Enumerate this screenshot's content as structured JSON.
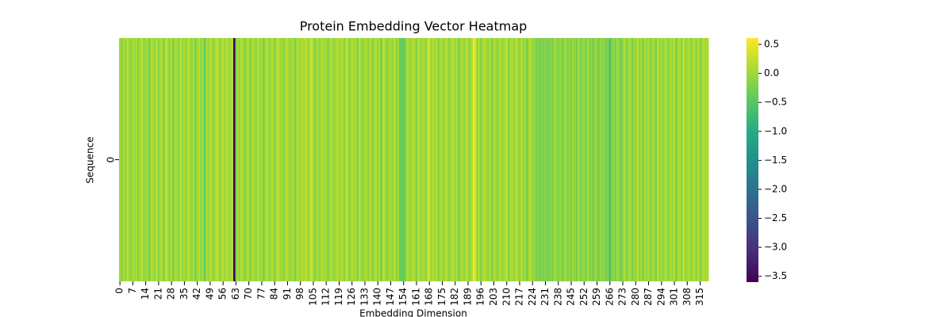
{
  "chart_data": {
    "type": "heatmap",
    "title": "Protein Embedding Vector Heatmap",
    "xlabel": "Embedding Dimension",
    "ylabel": "Sequence",
    "rows": [
      "0"
    ],
    "xlim": [
      0,
      320
    ],
    "xticks": [
      0,
      7,
      14,
      21,
      28,
      35,
      42,
      49,
      56,
      63,
      70,
      77,
      84,
      91,
      98,
      105,
      112,
      119,
      126,
      133,
      140,
      147,
      154,
      161,
      168,
      175,
      182,
      189,
      196,
      203,
      210,
      217,
      224,
      231,
      238,
      245,
      252,
      259,
      266,
      273,
      280,
      287,
      294,
      301,
      308,
      315
    ],
    "colormap": "viridis",
    "clim": [
      -3.6,
      0.61
    ],
    "cticks": [
      {
        "value": 0.5,
        "label": "0.5"
      },
      {
        "value": 0,
        "label": "0.0"
      },
      {
        "value": -0.5,
        "label": "−0.5"
      },
      {
        "value": -1,
        "label": "−1.0"
      },
      {
        "value": -1.5,
        "label": "−1.5"
      },
      {
        "value": -2,
        "label": "−2.0"
      },
      {
        "value": -2.5,
        "label": "−2.5"
      },
      {
        "value": -3,
        "label": "−3.0"
      },
      {
        "value": -3.5,
        "label": "−3.5"
      }
    ],
    "values": [
      [
        0.05,
        -0.25,
        0.1,
        -0.1,
        0.2,
        0.0,
        -0.15,
        0.15,
        -0.05,
        0.1,
        -0.2,
        0.05,
        0.2,
        -0.1,
        0.0,
        0.1,
        -0.3,
        0.15,
        0.05,
        -0.05,
        0.2,
        -0.15,
        0.1,
        0.0,
        -0.2,
        0.25,
        0.05,
        -0.1,
        0.15,
        -0.35,
        0.1,
        0.0,
        -0.2,
        0.2,
        -0.05,
        0.1,
        -0.15,
        0.25,
        0.05,
        -0.1,
        0.15,
        -0.25,
        0.0,
        0.2,
        -0.1,
        0.05,
        -0.5,
        0.1,
        -0.05,
        0.2,
        0.0,
        -0.15,
        0.1,
        0.25,
        -0.2,
        0.05,
        0.15,
        -0.1,
        0.2,
        0.0,
        -0.05,
        0.15,
        -3.6,
        -0.3,
        0.1,
        -0.15,
        0.2,
        0.0,
        -0.2,
        0.1,
        0.05,
        -0.25,
        0.15,
        0.0,
        -0.1,
        0.2,
        -0.05,
        0.1,
        -0.3,
        0.05,
        0.2,
        -0.1,
        0.0,
        0.15,
        -0.2,
        0.1,
        0.25,
        -0.05,
        0.05,
        -0.15,
        0.1,
        0.2,
        -0.1,
        0.0,
        0.15,
        -0.25,
        0.05,
        0.1,
        -0.05,
        0.2,
        0.0,
        0.25,
        -0.15,
        0.1,
        0.3,
        0.05,
        -0.2,
        0.15,
        -0.1,
        0.0,
        0.2,
        -0.05,
        0.1,
        -0.3,
        0.05,
        0.15,
        -0.15,
        0.0,
        0.2,
        -0.1,
        0.1,
        0.05,
        -0.2,
        0.25,
        0.0,
        -0.1,
        0.15,
        -0.05,
        0.1,
        -0.25,
        0.2,
        0.0,
        -0.15,
        0.1,
        0.05,
        -0.1,
        0.25,
        -0.2,
        0.0,
        0.15,
        -0.05,
        0.1,
        -0.3,
        0.2,
        0.05,
        -0.15,
        0.0,
        0.1,
        -0.1,
        0.2,
        -0.2,
        0.05,
        -0.35,
        -0.4,
        -0.45,
        -0.25,
        0.1,
        0.0,
        -0.1,
        0.15,
        0.05,
        -0.2,
        0.2,
        0.0,
        -0.05,
        0.1,
        -0.15,
        0.25,
        0.3,
        -0.1,
        0.15,
        0.0,
        0.2,
        -0.2,
        0.1,
        0.05,
        -0.1,
        0.25,
        0.0,
        -0.15,
        0.1,
        0.2,
        -0.05,
        0.15,
        -0.25,
        0.0,
        0.1,
        -0.1,
        0.2,
        0.05,
        -0.15,
        0.1,
        0.61,
        0.35,
        -0.1,
        0.15,
        -0.2,
        0.05,
        0.2,
        0.0,
        -0.1,
        0.1,
        -0.25,
        0.15,
        0.05,
        -0.15,
        0.2,
        0.0,
        -0.05,
        0.1,
        0.25,
        -0.2,
        0.05,
        0.1,
        -0.1,
        0.2,
        0.0,
        -0.15,
        0.15,
        -0.05,
        0.1,
        -0.3,
        0.05,
        0.2,
        -0.1,
        0.0,
        -0.25,
        -0.2,
        -0.3,
        -0.15,
        -0.25,
        -0.1,
        -0.3,
        -0.2,
        -0.15,
        -0.25,
        0.05,
        -0.1,
        -0.2,
        0.0,
        -0.3,
        -0.15,
        0.1,
        -0.2,
        -0.05,
        -0.25,
        0.0,
        -0.1,
        -0.3,
        0.05,
        -0.2,
        -0.15,
        -0.05,
        -0.25,
        0.1,
        -0.2,
        -0.1,
        -0.3,
        0.0,
        -0.15,
        -0.25,
        -0.05,
        -0.2,
        -0.1,
        -0.3,
        -0.15,
        -0.6,
        -0.2,
        -0.05,
        -0.25,
        0.05,
        -0.15,
        -0.3,
        -0.1,
        0.1,
        -0.2,
        -0.05,
        0.15,
        -0.25,
        0.0,
        -0.1,
        0.2,
        -0.15,
        0.05,
        -0.3,
        0.1,
        -0.05,
        0.15,
        -0.2,
        0.0,
        0.1,
        -0.25,
        0.2,
        -0.1,
        0.05,
        -0.15,
        0.15,
        0.0,
        -0.2,
        0.1,
        -0.05,
        0.2,
        -0.3,
        0.05,
        0.1,
        -0.15,
        0.25,
        -0.1,
        0.0,
        0.15,
        -0.2,
        0.05,
        0.1,
        -0.1,
        0.2,
        -0.25,
        0.0,
        0.15,
        -0.05,
        0.1
      ]
    ]
  }
}
